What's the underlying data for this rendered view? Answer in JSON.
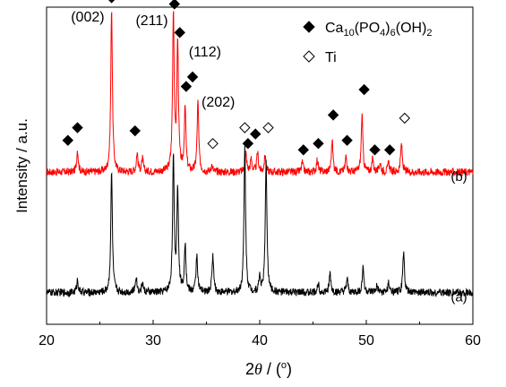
{
  "chart_data": {
    "type": "line",
    "xlabel_parts": [
      "2",
      "θ",
      " / (",
      "o",
      ")"
    ],
    "ylabel": "Intensity / a.u.",
    "xlim": [
      20,
      60
    ],
    "xticks": [
      20,
      30,
      40,
      50,
      60
    ],
    "xtick_labels": [
      "20",
      "30",
      "40",
      "50",
      "60"
    ],
    "yticks": "none",
    "grid": false,
    "series": [
      {
        "name": "(b)",
        "color": "#ff0000",
        "baseline": 0.48,
        "noise": 0.012,
        "peaks": [
          {
            "x": 22.9,
            "h": 0.07
          },
          {
            "x": 26.1,
            "h": 0.52
          },
          {
            "x": 28.5,
            "h": 0.06
          },
          {
            "x": 29.0,
            "h": 0.04
          },
          {
            "x": 31.9,
            "h": 0.5
          },
          {
            "x": 32.3,
            "h": 0.4
          },
          {
            "x": 33.0,
            "h": 0.2
          },
          {
            "x": 34.2,
            "h": 0.22
          },
          {
            "x": 35.5,
            "h": 0.02
          },
          {
            "x": 38.7,
            "h": 0.06
          },
          {
            "x": 39.2,
            "h": 0.04
          },
          {
            "x": 39.8,
            "h": 0.06
          },
          {
            "x": 40.5,
            "h": 0.05
          },
          {
            "x": 44.0,
            "h": 0.03
          },
          {
            "x": 45.4,
            "h": 0.04
          },
          {
            "x": 46.8,
            "h": 0.1
          },
          {
            "x": 48.1,
            "h": 0.05
          },
          {
            "x": 49.6,
            "h": 0.18
          },
          {
            "x": 50.6,
            "h": 0.04
          },
          {
            "x": 51.3,
            "h": 0.03
          },
          {
            "x": 52.1,
            "h": 0.03
          },
          {
            "x": 53.3,
            "h": 0.09
          }
        ]
      },
      {
        "name": "(a)",
        "color": "#000000",
        "baseline": 0.1,
        "noise": 0.012,
        "peaks": [
          {
            "x": 22.9,
            "h": 0.04
          },
          {
            "x": 26.1,
            "h": 0.38
          },
          {
            "x": 28.4,
            "h": 0.05
          },
          {
            "x": 29.0,
            "h": 0.03
          },
          {
            "x": 31.9,
            "h": 0.42
          },
          {
            "x": 32.3,
            "h": 0.32
          },
          {
            "x": 33.0,
            "h": 0.15
          },
          {
            "x": 34.1,
            "h": 0.12
          },
          {
            "x": 35.6,
            "h": 0.12
          },
          {
            "x": 38.6,
            "h": 0.46
          },
          {
            "x": 40.0,
            "h": 0.05
          },
          {
            "x": 40.6,
            "h": 0.42
          },
          {
            "x": 45.5,
            "h": 0.03
          },
          {
            "x": 46.6,
            "h": 0.06
          },
          {
            "x": 48.2,
            "h": 0.04
          },
          {
            "x": 49.7,
            "h": 0.08
          },
          {
            "x": 51.0,
            "h": 0.02
          },
          {
            "x": 52.1,
            "h": 0.03
          },
          {
            "x": 53.5,
            "h": 0.13
          }
        ]
      }
    ],
    "legend": {
      "placement": "top-right",
      "entries": [
        {
          "marker": "filled-diamond",
          "parts": [
            "Ca",
            "10",
            "(PO",
            "4",
            ")",
            "6",
            "(OH)",
            "2"
          ]
        },
        {
          "marker": "open-diamond",
          "label": "Ti"
        }
      ]
    },
    "hkl_labels": [
      {
        "text": "(002)",
        "x": 26.1,
        "anchor": "left"
      },
      {
        "text": "(211)",
        "x": 31.9,
        "anchor": "left"
      },
      {
        "text": "(112)",
        "x": 32.3,
        "anchor": "right"
      },
      {
        "text": "(202)",
        "x": 34.3,
        "anchor": "right"
      }
    ],
    "markers_filled": [
      {
        "x": 22.0,
        "y": 0.58
      },
      {
        "x": 22.9,
        "y": 0.62
      },
      {
        "x": 26.1,
        "y": 1.03
      },
      {
        "x": 28.3,
        "y": 0.61
      },
      {
        "x": 32.0,
        "y": 1.01
      },
      {
        "x": 32.5,
        "y": 0.92
      },
      {
        "x": 33.1,
        "y": 0.75
      },
      {
        "x": 33.7,
        "y": 0.78
      },
      {
        "x": 38.9,
        "y": 0.57
      },
      {
        "x": 39.6,
        "y": 0.6
      },
      {
        "x": 44.1,
        "y": 0.55
      },
      {
        "x": 45.5,
        "y": 0.57
      },
      {
        "x": 46.9,
        "y": 0.66
      },
      {
        "x": 48.2,
        "y": 0.58
      },
      {
        "x": 49.8,
        "y": 0.74
      },
      {
        "x": 50.8,
        "y": 0.55
      },
      {
        "x": 52.2,
        "y": 0.55
      }
    ],
    "markers_open": [
      {
        "x": 35.6,
        "y": 0.57
      },
      {
        "x": 38.6,
        "y": 0.62
      },
      {
        "x": 40.8,
        "y": 0.62
      },
      {
        "x": 53.6,
        "y": 0.65
      }
    ]
  }
}
